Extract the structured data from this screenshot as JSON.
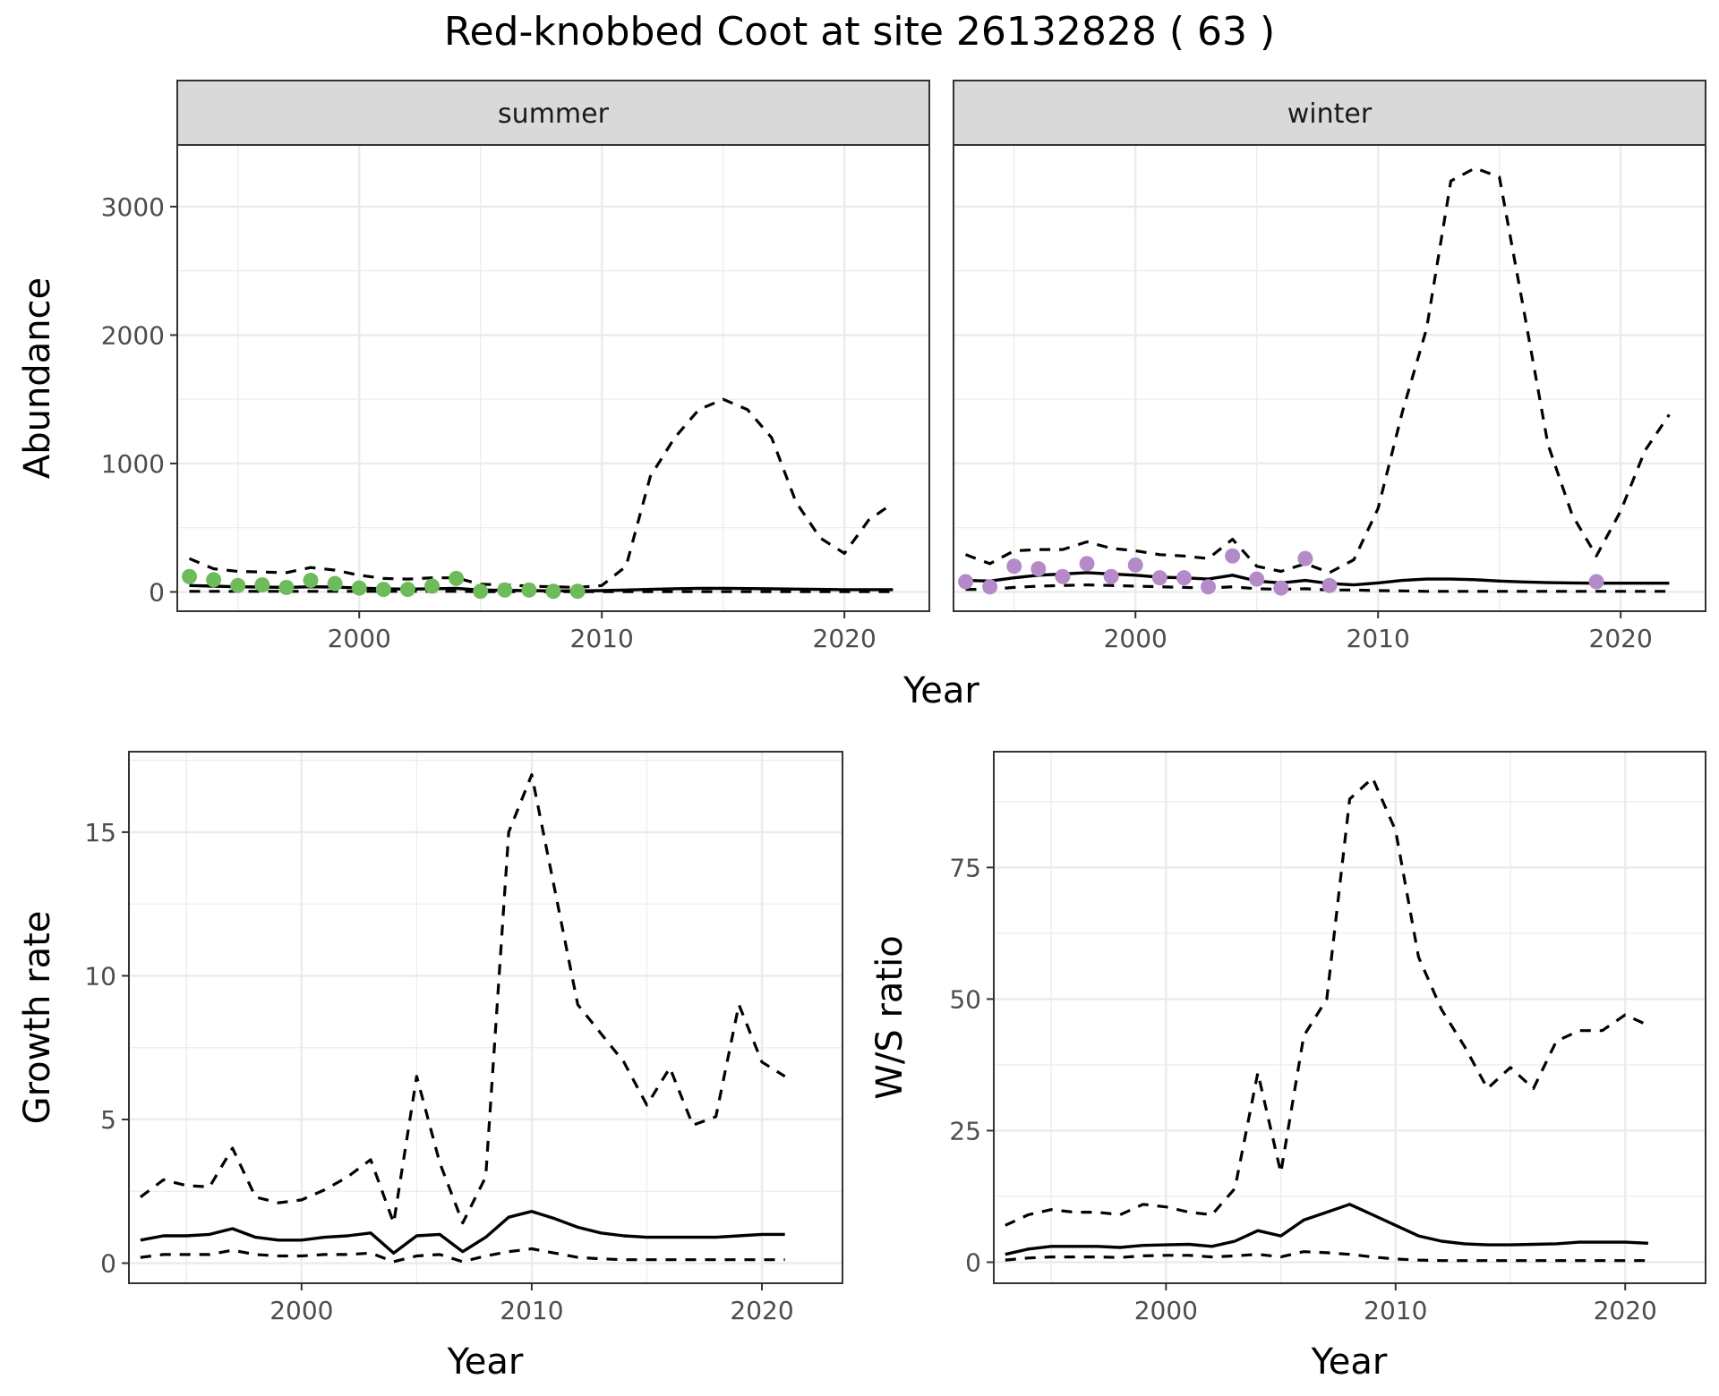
{
  "figure": {
    "title": "Red-knobbed Coot at site 26132828 ( 63 )",
    "point_colors": {
      "summer": "#6dbb5a",
      "winter": "#b48bc8"
    }
  },
  "chart_data": [
    {
      "id": "abundance",
      "type": "line",
      "facets": [
        "summer",
        "winter"
      ],
      "xlabel": "Year",
      "ylabel": "Abundance",
      "xlim": [
        1992.5,
        2023.5
      ],
      "ylim": [
        -150,
        3480
      ],
      "xticks": [
        2000,
        2010,
        2020
      ],
      "yticks": [
        0,
        1000,
        2000,
        3000
      ],
      "grid": true,
      "panels": [
        {
          "facet": "summer",
          "x": [
            1993,
            1994,
            1995,
            1996,
            1997,
            1998,
            1999,
            2000,
            2001,
            2002,
            2003,
            2004,
            2005,
            2006,
            2007,
            2008,
            2009,
            2010,
            2011,
            2012,
            2013,
            2014,
            2015,
            2016,
            2017,
            2018,
            2019,
            2020,
            2021,
            2022
          ],
          "mean": [
            50,
            45,
            40,
            38,
            35,
            40,
            38,
            30,
            25,
            22,
            25,
            28,
            15,
            12,
            10,
            8,
            8,
            10,
            15,
            20,
            25,
            28,
            28,
            26,
            24,
            22,
            20,
            18,
            18,
            18
          ],
          "upper": [
            260,
            180,
            160,
            155,
            150,
            190,
            170,
            130,
            105,
            100,
            110,
            110,
            60,
            55,
            45,
            40,
            35,
            50,
            200,
            900,
            1200,
            1420,
            1500,
            1420,
            1200,
            700,
            420,
            300,
            560,
            690
          ],
          "lower": [
            5,
            5,
            5,
            5,
            5,
            5,
            5,
            5,
            5,
            5,
            5,
            5,
            2,
            2,
            2,
            2,
            2,
            2,
            2,
            2,
            2,
            2,
            2,
            2,
            2,
            2,
            2,
            2,
            2,
            2
          ],
          "obs_x": [
            1993,
            1994,
            1995,
            1996,
            1997,
            1998,
            1999,
            2000,
            2001,
            2002,
            2003,
            2004,
            2005,
            2006,
            2007,
            2008,
            2009
          ],
          "obs_y": [
            120,
            95,
            50,
            55,
            35,
            90,
            65,
            30,
            20,
            20,
            45,
            105,
            5,
            15,
            15,
            5,
            5
          ]
        },
        {
          "facet": "winter",
          "x": [
            1993,
            1994,
            1995,
            1996,
            1997,
            1998,
            1999,
            2000,
            2001,
            2002,
            2003,
            2004,
            2005,
            2006,
            2007,
            2008,
            2009,
            2010,
            2011,
            2012,
            2013,
            2014,
            2015,
            2016,
            2017,
            2018,
            2019,
            2020,
            2021,
            2022
          ],
          "mean": [
            90,
            85,
            110,
            130,
            140,
            150,
            140,
            130,
            115,
            110,
            100,
            130,
            85,
            70,
            90,
            65,
            55,
            70,
            90,
            100,
            100,
            95,
            85,
            78,
            72,
            70,
            68,
            68,
            68,
            68
          ],
          "upper": [
            290,
            220,
            320,
            330,
            330,
            390,
            340,
            320,
            290,
            280,
            260,
            410,
            200,
            160,
            220,
            150,
            250,
            650,
            1400,
            2050,
            3200,
            3300,
            3230,
            2200,
            1150,
            600,
            280,
            630,
            1100,
            1380
          ],
          "lower": [
            20,
            20,
            35,
            45,
            50,
            55,
            50,
            45,
            40,
            35,
            30,
            40,
            25,
            20,
            25,
            15,
            15,
            10,
            8,
            5,
            5,
            5,
            5,
            5,
            5,
            5,
            5,
            5,
            5,
            5
          ],
          "obs_x": [
            1993,
            1994,
            1995,
            1996,
            1997,
            1998,
            1999,
            2000,
            2001,
            2002,
            2003,
            2004,
            2005,
            2006,
            2007,
            2008,
            2019
          ],
          "obs_y": [
            80,
            40,
            200,
            180,
            120,
            220,
            120,
            210,
            110,
            110,
            40,
            280,
            100,
            30,
            260,
            50,
            80
          ]
        }
      ]
    },
    {
      "id": "growth",
      "type": "line",
      "xlabel": "Year",
      "ylabel": "Growth rate",
      "xlim": [
        1992.5,
        2023.5
      ],
      "ylim": [
        -0.7,
        17.8
      ],
      "xticks": [
        2000,
        2010,
        2020
      ],
      "yticks": [
        0,
        5,
        10,
        15
      ],
      "grid": true,
      "x": [
        1993,
        1994,
        1995,
        1996,
        1997,
        1998,
        1999,
        2000,
        2001,
        2002,
        2003,
        2004,
        2005,
        2006,
        2007,
        2008,
        2009,
        2010,
        2011,
        2012,
        2013,
        2014,
        2015,
        2016,
        2017,
        2018,
        2019,
        2020,
        2021
      ],
      "mean": [
        0.8,
        0.95,
        0.95,
        1.0,
        1.2,
        0.9,
        0.8,
        0.8,
        0.9,
        0.95,
        1.05,
        0.35,
        0.95,
        1.0,
        0.4,
        0.9,
        1.6,
        1.8,
        1.55,
        1.25,
        1.05,
        0.95,
        0.9,
        0.9,
        0.9,
        0.9,
        0.95,
        1.0,
        1.0
      ],
      "upper": [
        2.3,
        2.9,
        2.7,
        2.65,
        4.0,
        2.3,
        2.1,
        2.2,
        2.55,
        3.0,
        3.6,
        1.4,
        6.5,
        3.5,
        1.4,
        3.0,
        15.0,
        17.0,
        13.0,
        9.0,
        8.0,
        7.0,
        5.5,
        6.8,
        4.8,
        5.1,
        9.0,
        7.0,
        6.5
      ],
      "lower": [
        0.2,
        0.3,
        0.3,
        0.3,
        0.45,
        0.3,
        0.25,
        0.25,
        0.3,
        0.3,
        0.35,
        0.05,
        0.25,
        0.3,
        0.05,
        0.25,
        0.4,
        0.5,
        0.35,
        0.2,
        0.15,
        0.12,
        0.12,
        0.12,
        0.12,
        0.12,
        0.12,
        0.12,
        0.12
      ]
    },
    {
      "id": "ratio",
      "type": "line",
      "xlabel": "Year",
      "ylabel": "W/S ratio",
      "xlim": [
        1992.5,
        2023.5
      ],
      "ylim": [
        -4,
        97
      ],
      "xticks": [
        2000,
        2010,
        2020
      ],
      "yticks": [
        0,
        25,
        50,
        75
      ],
      "grid": true,
      "x": [
        1993,
        1994,
        1995,
        1996,
        1997,
        1998,
        1999,
        2000,
        2001,
        2002,
        2003,
        2004,
        2005,
        2006,
        2007,
        2008,
        2009,
        2010,
        2011,
        2012,
        2013,
        2014,
        2015,
        2016,
        2017,
        2018,
        2019,
        2020,
        2021
      ],
      "mean": [
        1.5,
        2.5,
        3.0,
        3.0,
        3.0,
        2.8,
        3.2,
        3.3,
        3.4,
        3.0,
        4.0,
        6.0,
        5.0,
        8.0,
        9.5,
        11.0,
        9.0,
        7.0,
        5.0,
        4.0,
        3.5,
        3.3,
        3.3,
        3.4,
        3.5,
        3.8,
        3.8,
        3.8,
        3.6
      ],
      "upper": [
        7.0,
        9.0,
        10.0,
        9.5,
        9.5,
        9.0,
        11.0,
        10.5,
        9.5,
        9.0,
        14.0,
        36.0,
        17.0,
        43.0,
        50.0,
        88.0,
        92.0,
        82.0,
        58.0,
        48.0,
        41.0,
        33.0,
        37.0,
        33.0,
        42.0,
        44.0,
        44.0,
        47.0,
        45.0
      ],
      "lower": [
        0.4,
        0.8,
        1.0,
        1.0,
        1.0,
        0.9,
        1.2,
        1.3,
        1.3,
        1.0,
        1.2,
        1.5,
        1.0,
        2.0,
        1.8,
        1.5,
        1.0,
        0.6,
        0.4,
        0.3,
        0.3,
        0.3,
        0.3,
        0.3,
        0.3,
        0.3,
        0.3,
        0.3,
        0.3
      ]
    }
  ]
}
